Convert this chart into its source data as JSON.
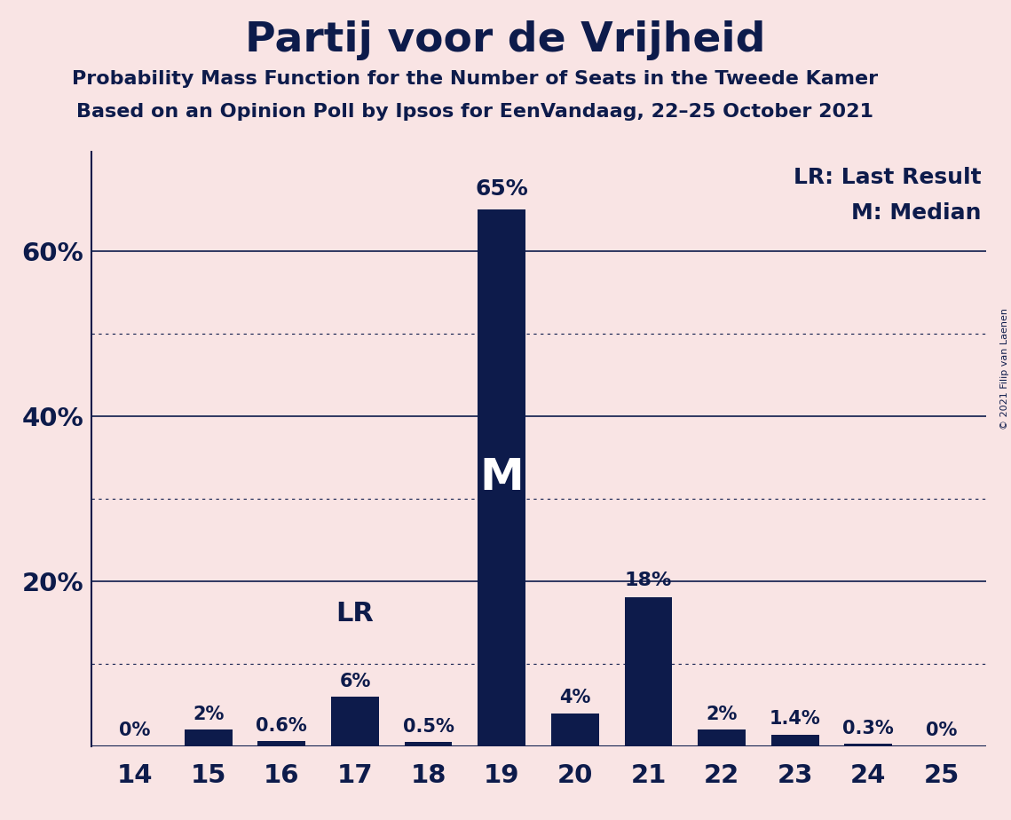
{
  "title": "Partij voor de Vrijheid",
  "subtitle1": "Probability Mass Function for the Number of Seats in the Tweede Kamer",
  "subtitle2": "Based on an Opinion Poll by Ipsos for EenVandaag, 22–25 October 2021",
  "copyright": "© 2021 Filip van Laenen",
  "categories": [
    14,
    15,
    16,
    17,
    18,
    19,
    20,
    21,
    22,
    23,
    24,
    25
  ],
  "values": [
    0.0,
    2.0,
    0.6,
    6.0,
    0.5,
    65.0,
    4.0,
    18.0,
    2.0,
    1.4,
    0.3,
    0.0
  ],
  "labels": [
    "0%",
    "2%",
    "0.6%",
    "6%",
    "0.5%",
    "65%",
    "4%",
    "18%",
    "2%",
    "1.4%",
    "0.3%",
    "0%"
  ],
  "bar_color": "#0d1b4b",
  "background_color": "#f9e4e4",
  "median_seat": 19,
  "lr_seat": 17,
  "legend_lr": "LR: Last Result",
  "legend_m": "M: Median",
  "yticks": [
    0,
    20,
    40,
    60
  ],
  "dotted_lines": [
    10,
    30,
    50
  ],
  "ylim": [
    0,
    72
  ]
}
